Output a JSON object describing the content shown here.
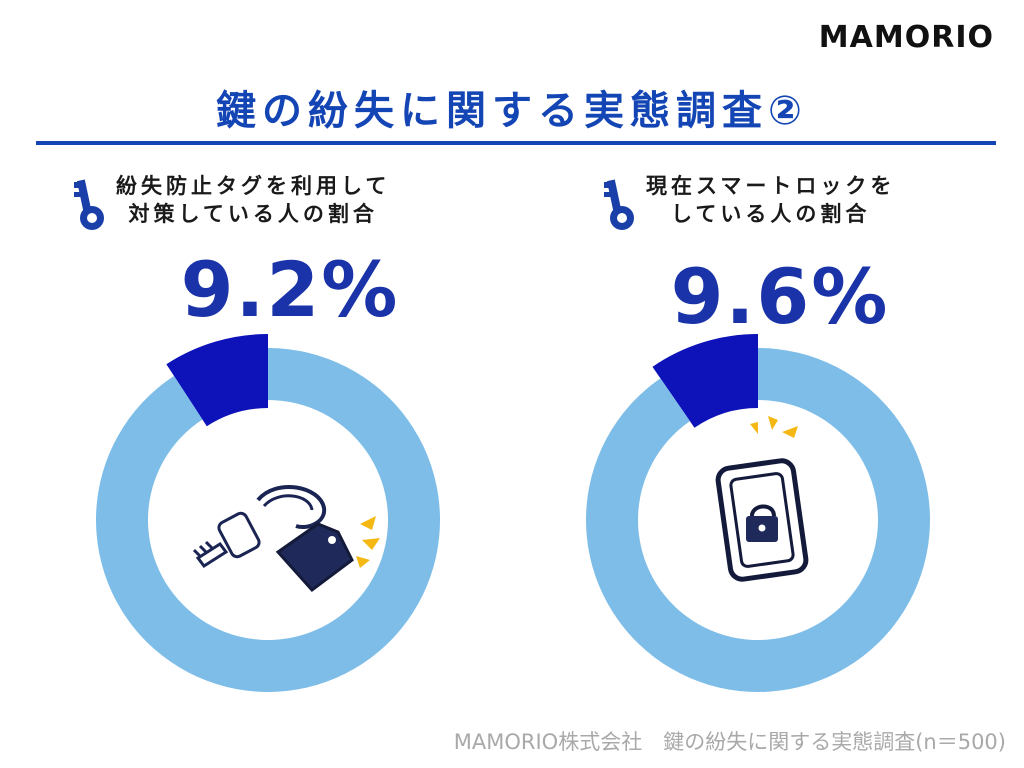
{
  "brand": {
    "logo": "MAMORIO"
  },
  "title": "鍵の紛失に関する実態調査②",
  "panels": [
    {
      "label_lines": [
        "紛失防止タグを利用して",
        "対策している人の割合"
      ],
      "value_text": "9.2%"
    },
    {
      "label_lines": [
        "現在スマートロックを",
        "している人の割合"
      ],
      "value_text": "9.6%"
    }
  ],
  "source": "MAMORIO株式会社　鍵の紛失に関する実態調査(n＝500)",
  "chart_data": [
    {
      "type": "pie",
      "donut": true,
      "categories": [
        "紛失防止タグを利用して対策している人の割合",
        ""
      ],
      "values": [
        9.2,
        90.8
      ],
      "colors": [
        "#0d13b8",
        "#7dbde8"
      ],
      "center_icon": "key-with-tag-icon"
    },
    {
      "type": "pie",
      "donut": true,
      "categories": [
        "現在スマートロックをしている人の割合",
        ""
      ],
      "values": [
        9.6,
        90.4
      ],
      "colors": [
        "#0d13b8",
        "#7dbde8"
      ],
      "center_icon": "smartphone-lock-icon"
    }
  ]
}
